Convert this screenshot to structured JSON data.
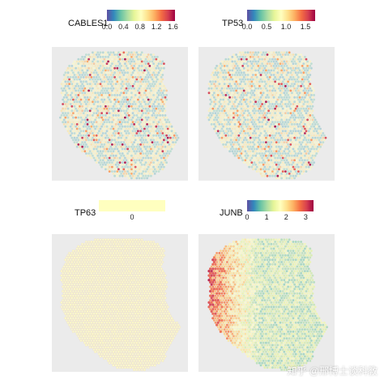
{
  "watermark": "知乎 @邢博士谈科教",
  "chart_data": [
    {
      "type": "heatmap",
      "gene": "CABLES1",
      "colorbar_ticks": [
        "0.0",
        "0.4",
        "0.8",
        "1.2",
        "1.6"
      ],
      "tick_values": [
        0.0,
        0.4,
        0.8,
        1.2,
        1.6
      ],
      "range": [
        0.0,
        1.65
      ],
      "palette": "Spectral (reversed)",
      "spatial_pattern": "sparse scattered high spots"
    },
    {
      "type": "heatmap",
      "gene": "TP53",
      "colorbar_ticks": [
        "0.0",
        "0.5",
        "1.0",
        "1.5"
      ],
      "tick_values": [
        0.0,
        0.5,
        1.0,
        1.5
      ],
      "range": [
        0.0,
        1.75
      ],
      "palette": "Spectral (reversed)",
      "spatial_pattern": "sparse scattered high spots"
    },
    {
      "type": "heatmap",
      "gene": "TP63",
      "colorbar_ticks": [
        "0"
      ],
      "tick_values": [
        0
      ],
      "range": [
        0,
        0
      ],
      "palette": "constant pale yellow",
      "spatial_pattern": "uniform zero"
    },
    {
      "type": "heatmap",
      "gene": "JUNB",
      "colorbar_ticks": [
        "0",
        "1",
        "2",
        "3"
      ],
      "tick_values": [
        0,
        1,
        2,
        3
      ],
      "range": [
        0,
        3.4
      ],
      "palette": "Spectral (reversed)",
      "spatial_pattern": "high on left edge, decreasing to the right"
    }
  ],
  "colors": {
    "spectral": [
      "#5e4fa2",
      "#3288bd",
      "#66c2a5",
      "#abdda4",
      "#e6f598",
      "#ffffbf",
      "#fee08b",
      "#fdae61",
      "#f46d43",
      "#d53e4f",
      "#9e0142"
    ],
    "panel_background": "#ebebeb",
    "tp63_constant": "#ffffbf"
  }
}
